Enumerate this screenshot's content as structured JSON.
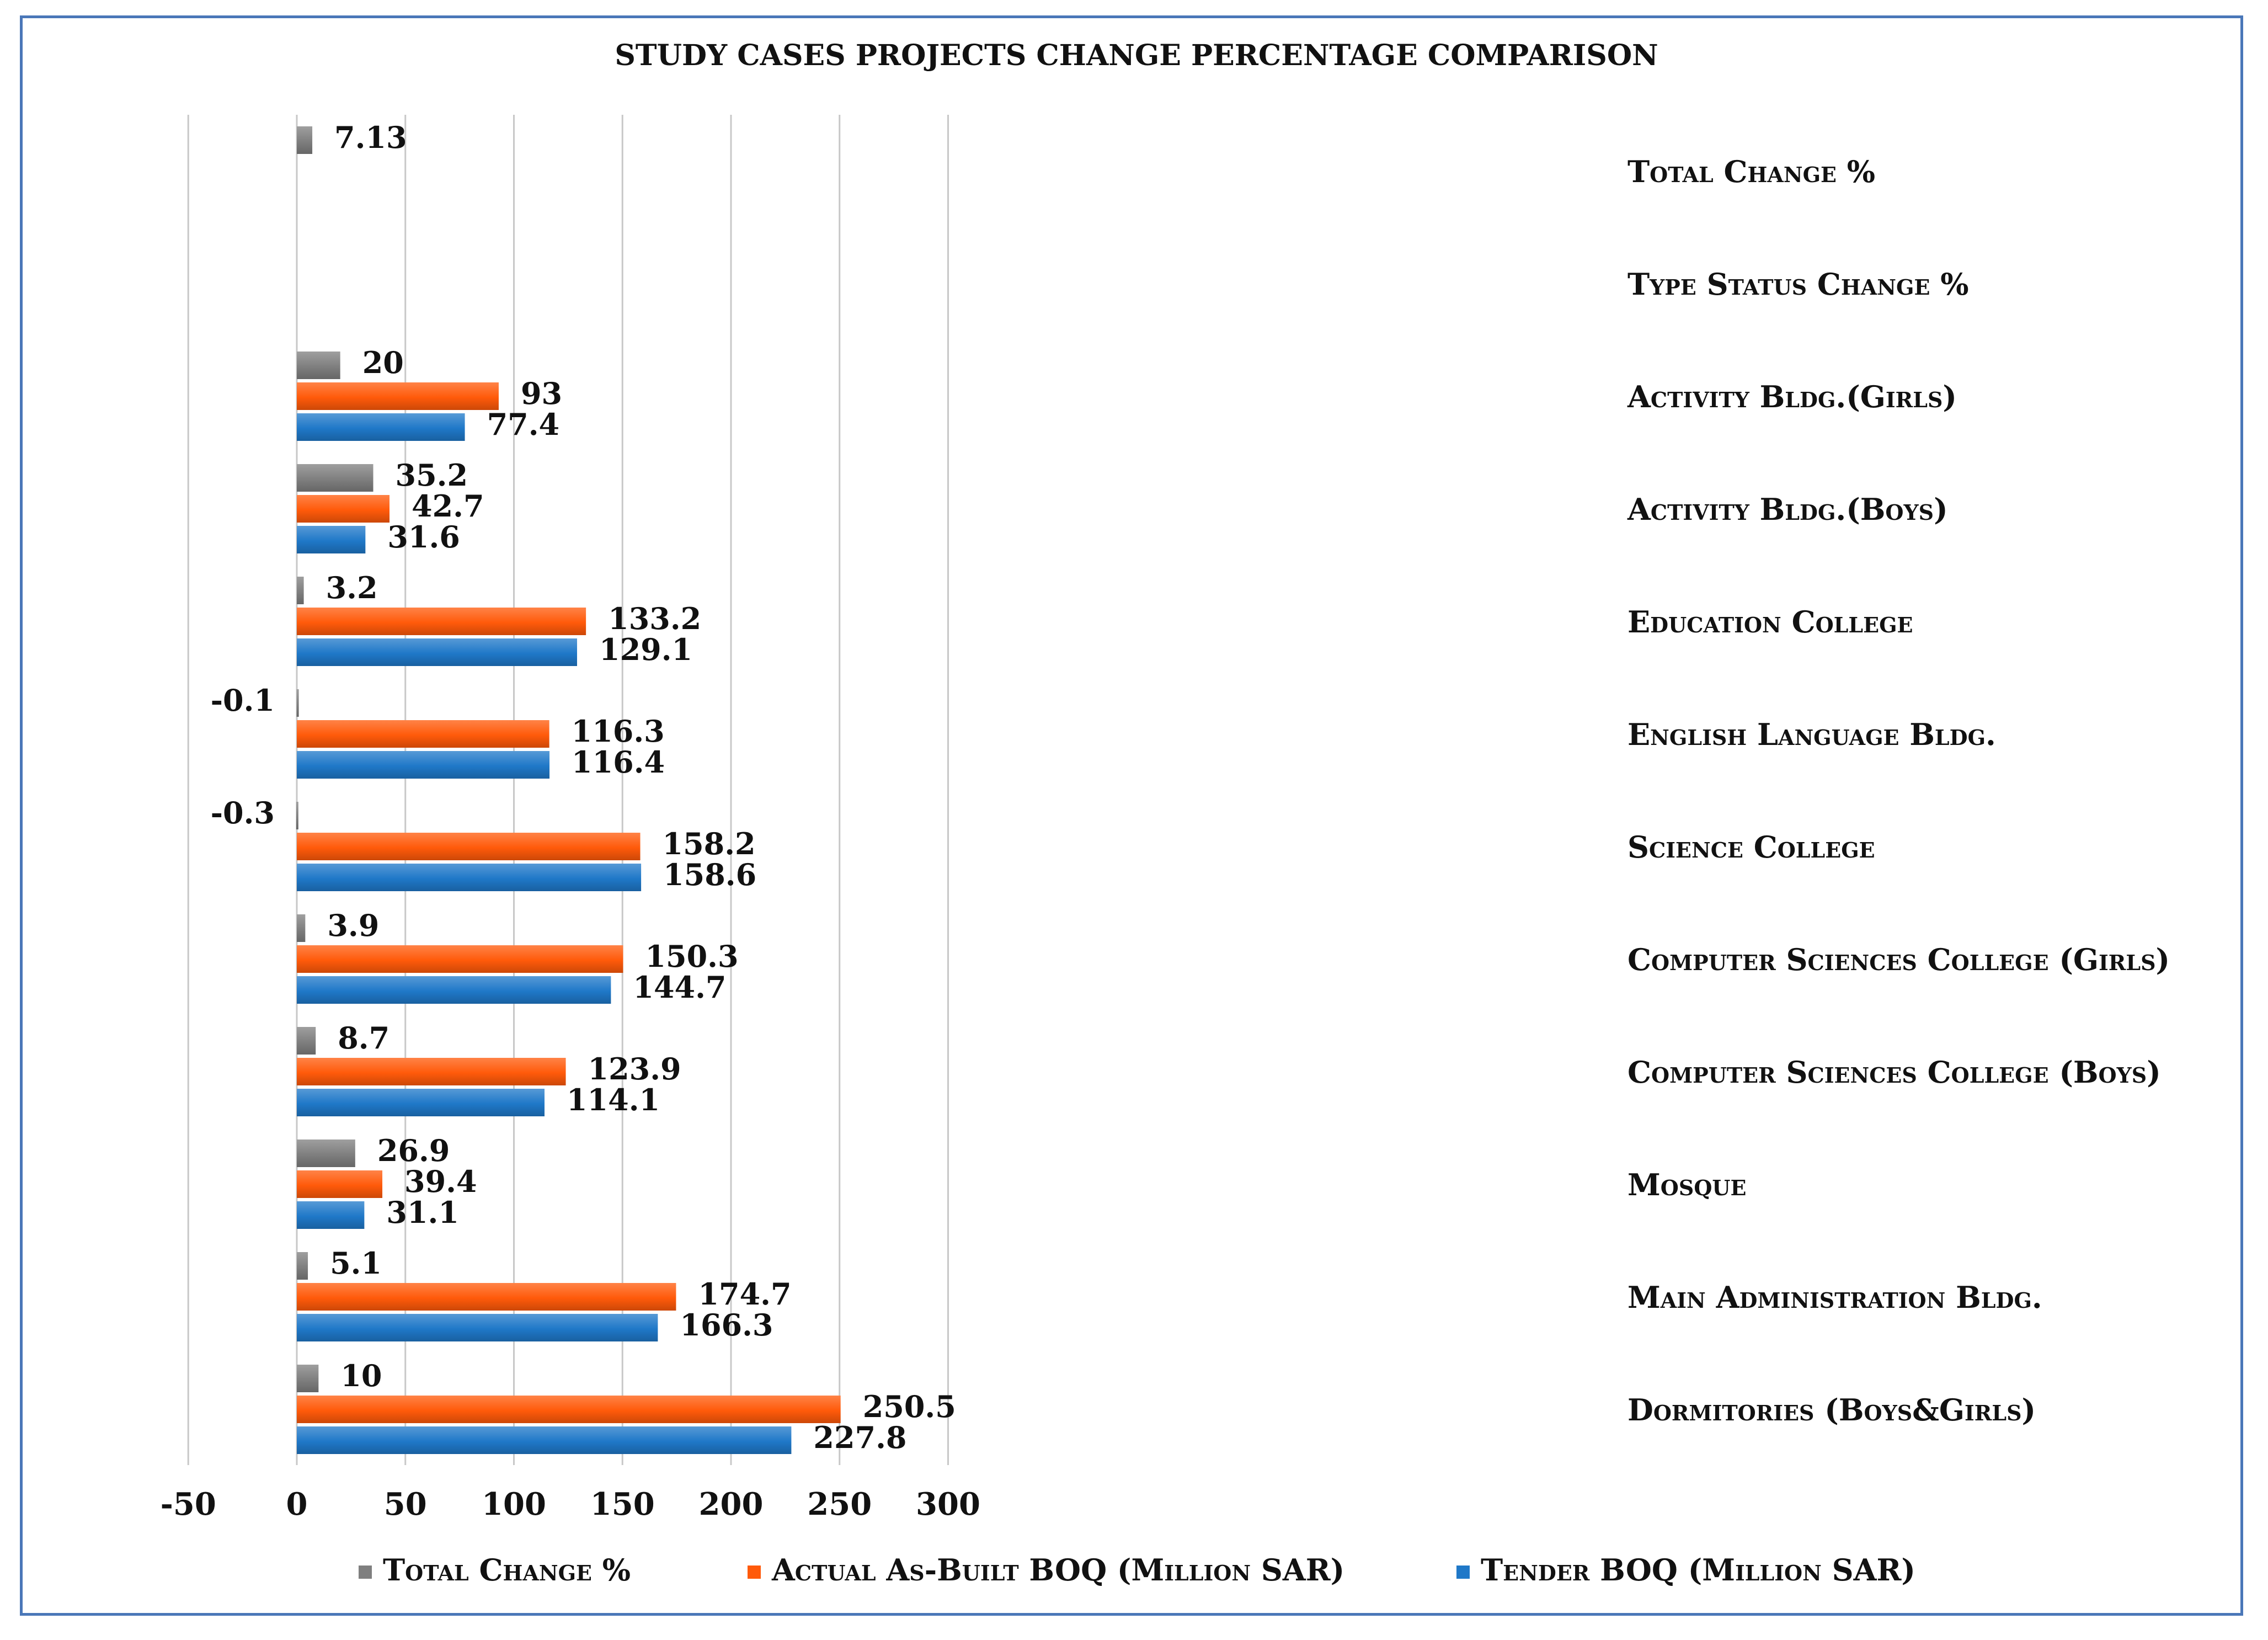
{
  "chart_data": {
    "type": "bar",
    "orientation": "horizontal",
    "title": "STUDY CASES PROJECTS CHANGE PERCENTAGE COMPARISON",
    "xlim": [
      -50,
      300
    ],
    "xticks": [
      -50,
      0,
      50,
      100,
      150,
      200,
      250,
      300
    ],
    "categories": [
      "Total Change %",
      "Type Status Change %",
      "Activity Bldg.(Girls)",
      "Activity Bldg.(Boys)",
      "Education College",
      "English Language Bldg.",
      "Science College",
      "Computer Sciences College (Girls)",
      "Computer Sciences College (Boys)",
      "Mosque",
      "Main Administration Bldg.",
      "Dormitories (Boys&Girls)"
    ],
    "series": [
      {
        "name": "Total Change %",
        "color": "#7f7f7f",
        "values": [
          7.13,
          null,
          20,
          35.2,
          3.2,
          -0.1,
          -0.3,
          3.9,
          8.7,
          26.9,
          5.1,
          10
        ],
        "labels": [
          "7.13",
          "",
          "20",
          "35.2",
          "3.2",
          "-0.1",
          "-0.3",
          "3.9",
          "8.7",
          "26.9",
          "5.1",
          "10"
        ]
      },
      {
        "name": "Actual As-Built BOQ (Million SAR)",
        "color": "#ff5a0a",
        "values": [
          null,
          null,
          93,
          42.7,
          133.2,
          116.3,
          158.2,
          150.3,
          123.9,
          39.4,
          174.7,
          250.5
        ],
        "labels": [
          "",
          "",
          "93",
          "42.7",
          "133.2",
          "116.3",
          "158.2",
          "150.3",
          "123.9",
          "39.4",
          "174.7",
          "250.5"
        ]
      },
      {
        "name": "Tender BOQ (Million SAR)",
        "color": "#1f78c8",
        "values": [
          null,
          null,
          77.4,
          31.6,
          129.1,
          116.4,
          158.6,
          144.7,
          114.1,
          31.1,
          166.3,
          227.8
        ],
        "labels": [
          "",
          "",
          "77.4",
          "31.6",
          "129.1",
          "116.4",
          "158.6",
          "144.7",
          "114.1",
          "31.1",
          "166.3",
          "227.8"
        ]
      }
    ],
    "legend": [
      "Total Change %",
      "Actual As-Built BOQ (Million SAR)",
      "Tender BOQ (Million SAR)"
    ],
    "legend_position": "bottom",
    "grid": true
  }
}
